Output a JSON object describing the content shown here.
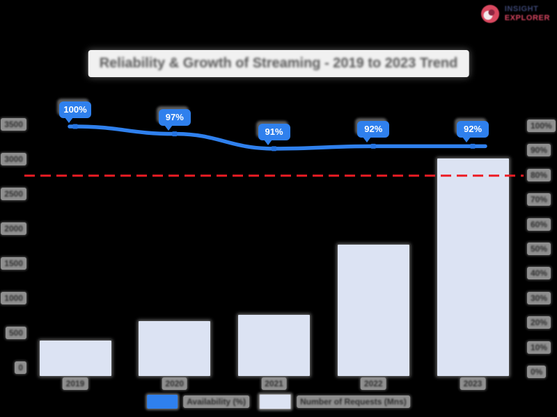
{
  "logo": {
    "line1": "INSIGHT",
    "line2": "EXPLORER"
  },
  "title": "Reliability & Growth of Streaming - 2019 to 2023 Trend",
  "legend": {
    "items": [
      {
        "label": "Availability (%)",
        "color": "#2f80ed"
      },
      {
        "label": "Number of Requests (Mns)",
        "color": "#dce3f3"
      }
    ]
  },
  "colors": {
    "background": "#000000",
    "trend_line": "#2f80ed",
    "bars": "#dce3f3",
    "threshold": "#ed1c24",
    "callout_bg": "#2f80ed",
    "callout_text": "#ffffff",
    "label_chip_bg": "#8f8f8f",
    "label_chip_text": "#2e2e2e",
    "title_bg": "#f1f1f1",
    "title_text": "#575757",
    "logo_line1_color": "#3a4470",
    "logo_line2_color": "#d64560"
  },
  "chart_data": {
    "type": "bar",
    "subtype": "combo-bar-line",
    "title": "Reliability & Growth of Streaming - 2019 to 2023 Trend",
    "categories": [
      "2019",
      "2020",
      "2021",
      "2022",
      "2023"
    ],
    "series": [
      {
        "name": "Availability (%)",
        "type": "line",
        "axis": "right",
        "color": "#2f80ed",
        "values": [
          100,
          97,
          91,
          92,
          92
        ],
        "point_labels": [
          "100%",
          "97%",
          "91%",
          "92%",
          "92%"
        ]
      },
      {
        "name": "Number of Requests (Mns)",
        "type": "bar",
        "axis": "left",
        "color": "#dce3f3",
        "values": [
          500,
          770,
          860,
          1840,
          3050
        ]
      }
    ],
    "left_axis": {
      "ticks": [
        "3500",
        "3000",
        "2500",
        "2000",
        "1500",
        "1000",
        "500",
        "0"
      ],
      "min": 0,
      "max": 3500
    },
    "right_axis": {
      "ticks": [
        "100%",
        "90%",
        "80%",
        "70%",
        "60%",
        "50%",
        "40%",
        "30%",
        "20%",
        "10%",
        "0%"
      ],
      "min": 0,
      "max": 100
    },
    "threshold_line": {
      "axis": "right",
      "value": 80,
      "color": "#ed1c24",
      "style": "dashed"
    },
    "legend_position": "bottom",
    "grid": false,
    "background": "#000000"
  }
}
